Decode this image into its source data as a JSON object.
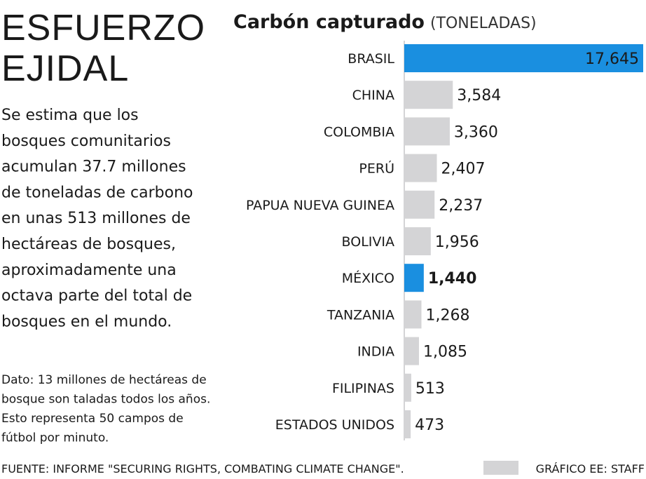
{
  "chart_data": {
    "type": "bar",
    "headline": [
      "ESFUERZO",
      "EJIDAL"
    ],
    "description": [
      "Se estima que los",
      "bosques comunitarios",
      "acumulan 37.7 millones",
      "de toneladas de carbono",
      "en unas 513 millones de",
      "hectáreas de bosques,",
      "aproximadamente una",
      "octava parte del total de",
      "bosques en el mundo."
    ],
    "note": [
      "Dato: 13 millones de hectáreas de",
      "bosque son taladas todos los años.",
      "Esto representa 50 campos de",
      "fútbol por minuto."
    ],
    "title": "Carbón capturado",
    "unit": "(TONELADAS)",
    "categories": [
      "BRASIL",
      "CHINA",
      "COLOMBIA",
      "PERÚ",
      "PAPUA NUEVA GUINEA",
      "BOLIVIA",
      "MÉXICO",
      "TANZANIA",
      "INDIA",
      "FILIPINAS",
      "ESTADOS UNIDOS"
    ],
    "values": [
      17645,
      3584,
      3360,
      2407,
      2237,
      1956,
      1440,
      1268,
      1085,
      513,
      473
    ],
    "value_labels": [
      "17,645",
      "3,584",
      "3,360",
      "2,407",
      "2,237",
      "1,956",
      "1,440",
      "1,268",
      "1,085",
      "513",
      "473"
    ],
    "colors": [
      "#1a8fe0",
      "#d4d4d6",
      "#d4d4d6",
      "#d4d4d6",
      "#d4d4d6",
      "#d4d4d6",
      "#1a8fe0",
      "#d4d4d6",
      "#d4d4d6",
      "#d4d4d6",
      "#d4d4d6"
    ],
    "source": "FUENTE: INFORME \"SECURING RIGHTS, COMBATING CLIMATE CHANGE\".",
    "credit": "GRÁFICO EE: STAFF"
  }
}
